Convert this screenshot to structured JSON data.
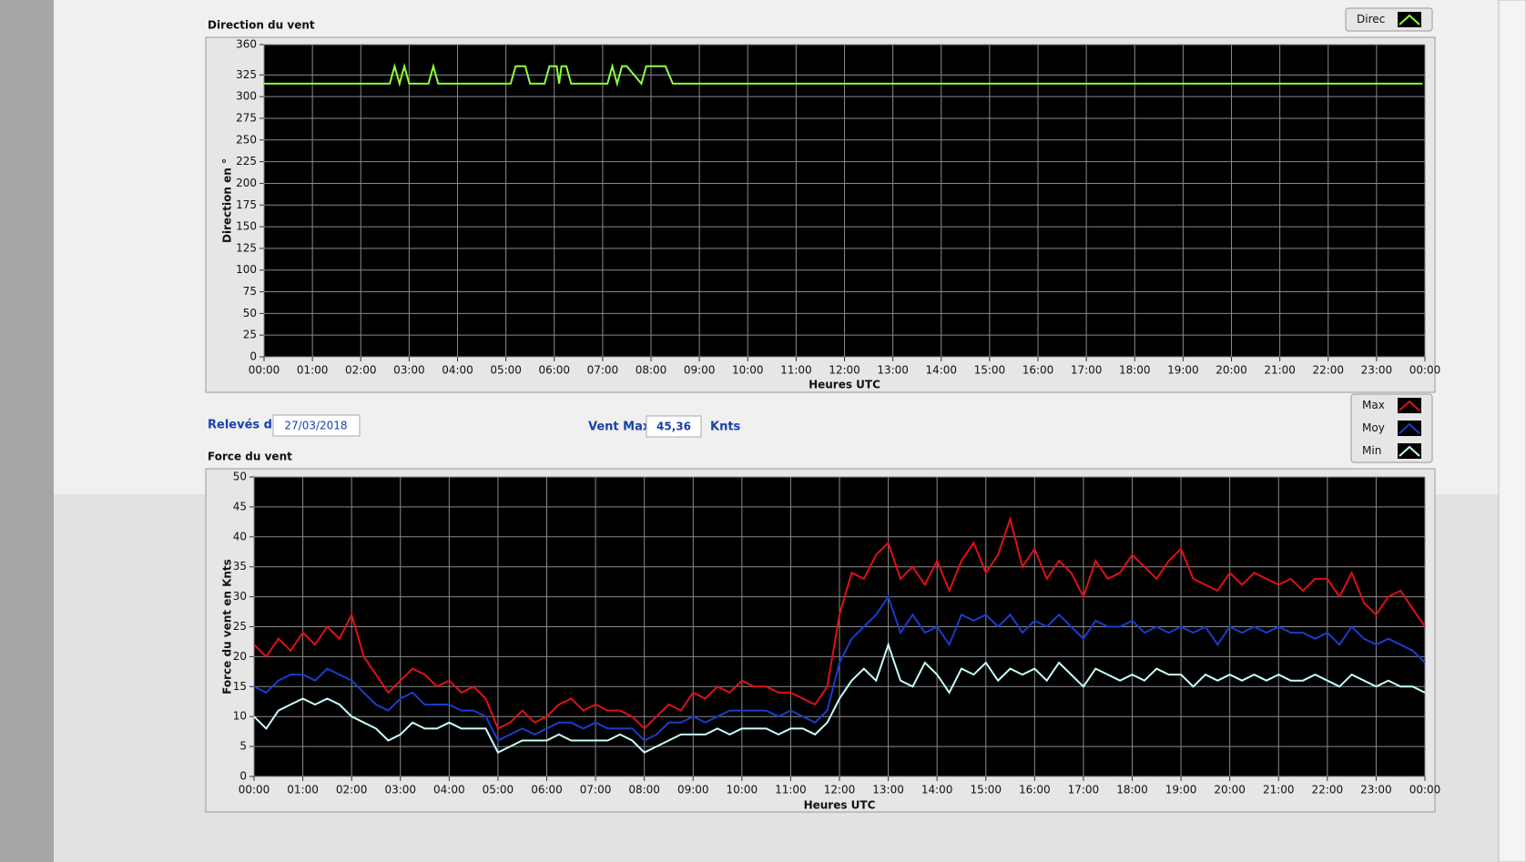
{
  "header": {
    "date_label": "Relevés du",
    "date": "27/03/2018",
    "vmax_label": "Vent Max",
    "vmax": "45,36",
    "vmax_unit": "Knts"
  },
  "chart_data": [
    {
      "type": "line",
      "title": "Direction du vent",
      "y_label": "Direction en °",
      "x_label": "Heures UTC",
      "x": [
        0,
        2.6,
        2.7,
        2.8,
        2.9,
        3.0,
        3.4,
        3.5,
        3.6,
        5.1,
        5.2,
        5.4,
        5.5,
        5.8,
        5.9,
        6.05,
        6.1,
        6.15,
        6.25,
        6.35,
        6.5,
        7.1,
        7.2,
        7.3,
        7.4,
        7.5,
        7.8,
        7.9,
        8.0,
        8.3,
        8.45,
        23.95
      ],
      "series": [
        {
          "name": "Direc",
          "color": "#8cff3c",
          "values": [
            315,
            315,
            335,
            315,
            335,
            315,
            315,
            335,
            315,
            315,
            335,
            335,
            315,
            315,
            335,
            335,
            315,
            335,
            335,
            315,
            315,
            315,
            335,
            315,
            335,
            335,
            315,
            335,
            335,
            335,
            315,
            315
          ]
        }
      ],
      "xlim": [
        0,
        24
      ],
      "ylim": [
        0,
        360
      ],
      "xticks": [
        {
          "value": 0,
          "label": "00:00"
        },
        {
          "value": 1,
          "label": "01:00"
        },
        {
          "value": 2,
          "label": "02:00"
        },
        {
          "value": 3,
          "label": "03:00"
        },
        {
          "value": 4,
          "label": "04:00"
        },
        {
          "value": 5,
          "label": "05:00"
        },
        {
          "value": 6,
          "label": "06:00"
        },
        {
          "value": 7,
          "label": "07:00"
        },
        {
          "value": 8,
          "label": "08:00"
        },
        {
          "value": 9,
          "label": "09:00"
        },
        {
          "value": 10,
          "label": "10:00"
        },
        {
          "value": 11,
          "label": "11:00"
        },
        {
          "value": 12,
          "label": "12:00"
        },
        {
          "value": 13,
          "label": "13:00"
        },
        {
          "value": 14,
          "label": "14:00"
        },
        {
          "value": 15,
          "label": "15:00"
        },
        {
          "value": 16,
          "label": "16:00"
        },
        {
          "value": 17,
          "label": "17:00"
        },
        {
          "value": 18,
          "label": "18:00"
        },
        {
          "value": 19,
          "label": "19:00"
        },
        {
          "value": 20,
          "label": "20:00"
        },
        {
          "value": 21,
          "label": "21:00"
        },
        {
          "value": 22,
          "label": "22:00"
        },
        {
          "value": 23,
          "label": "23:00"
        },
        {
          "value": 24,
          "label": "00:00"
        }
      ],
      "yticks": [
        0,
        25,
        50,
        75,
        100,
        125,
        150,
        175,
        200,
        225,
        250,
        275,
        300,
        325,
        360
      ],
      "grid": true
    },
    {
      "type": "line",
      "title": "Force du vent",
      "y_label": "Force du vent en Knts",
      "x_label": "Heures UTC",
      "x": [
        0,
        0.25,
        0.5,
        0.75,
        1,
        1.25,
        1.5,
        1.75,
        2,
        2.25,
        2.5,
        2.75,
        3,
        3.25,
        3.5,
        3.75,
        4,
        4.25,
        4.5,
        4.75,
        5,
        5.25,
        5.5,
        5.75,
        6,
        6.25,
        6.5,
        6.75,
        7,
        7.25,
        7.5,
        7.75,
        8,
        8.25,
        8.5,
        8.75,
        9,
        9.25,
        9.5,
        9.75,
        10,
        10.25,
        10.5,
        10.75,
        11,
        11.25,
        11.5,
        11.75,
        12,
        12.25,
        12.5,
        12.75,
        13,
        13.25,
        13.5,
        13.75,
        14,
        14.25,
        14.5,
        14.75,
        15,
        15.25,
        15.5,
        15.75,
        16,
        16.25,
        16.5,
        16.75,
        17,
        17.25,
        17.5,
        17.75,
        18,
        18.25,
        18.5,
        18.75,
        19,
        19.25,
        19.5,
        19.75,
        20,
        20.25,
        20.5,
        20.75,
        21,
        21.25,
        21.5,
        21.75,
        22,
        22.25,
        22.5,
        22.75,
        23,
        23.25,
        23.5,
        23.75,
        24
      ],
      "series": [
        {
          "name": "Max",
          "color": "#e01018",
          "values": [
            22,
            20,
            23,
            21,
            24,
            22,
            25,
            23,
            27,
            20,
            17,
            14,
            16,
            18,
            17,
            15,
            16,
            14,
            15,
            13,
            8,
            9,
            11,
            9,
            10,
            12,
            13,
            11,
            12,
            11,
            11,
            10,
            8,
            10,
            12,
            11,
            14,
            13,
            15,
            14,
            16,
            15,
            15,
            14,
            14,
            13,
            12,
            15,
            27,
            34,
            33,
            37,
            39,
            33,
            35,
            32,
            36,
            31,
            36,
            39,
            34,
            37,
            43,
            35,
            38,
            33,
            36,
            34,
            30,
            36,
            33,
            34,
            37,
            35,
            33,
            36,
            38,
            33,
            32,
            31,
            34,
            32,
            34,
            33,
            32,
            33,
            31,
            33,
            33,
            30,
            34,
            29,
            27,
            30,
            31,
            28,
            25
          ]
        },
        {
          "name": "Moy",
          "color": "#1a3ccc",
          "values": [
            15,
            14,
            16,
            17,
            17,
            16,
            18,
            17,
            16,
            14,
            12,
            11,
            13,
            14,
            12,
            12,
            12,
            11,
            11,
            10,
            6,
            7,
            8,
            7,
            8,
            9,
            9,
            8,
            9,
            8,
            8,
            8,
            6,
            7,
            9,
            9,
            10,
            9,
            10,
            11,
            11,
            11,
            11,
            10,
            11,
            10,
            9,
            11,
            19,
            23,
            25,
            27,
            30,
            24,
            27,
            24,
            25,
            22,
            27,
            26,
            27,
            25,
            27,
            24,
            26,
            25,
            27,
            25,
            23,
            26,
            25,
            25,
            26,
            24,
            25,
            24,
            25,
            24,
            25,
            22,
            25,
            24,
            25,
            24,
            25,
            24,
            24,
            23,
            24,
            22,
            25,
            23,
            22,
            23,
            22,
            21,
            19
          ]
        },
        {
          "name": "Min",
          "color": "#c8ffff",
          "values": [
            10,
            8,
            11,
            12,
            13,
            12,
            13,
            12,
            10,
            9,
            8,
            6,
            7,
            9,
            8,
            8,
            9,
            8,
            8,
            8,
            4,
            5,
            6,
            6,
            6,
            7,
            6,
            6,
            6,
            6,
            7,
            6,
            4,
            5,
            6,
            7,
            7,
            7,
            8,
            7,
            8,
            8,
            8,
            7,
            8,
            8,
            7,
            9,
            13,
            16,
            18,
            16,
            22,
            16,
            15,
            19,
            17,
            14,
            18,
            17,
            19,
            16,
            18,
            17,
            18,
            16,
            19,
            17,
            15,
            18,
            17,
            16,
            17,
            16,
            18,
            17,
            17,
            15,
            17,
            16,
            17,
            16,
            17,
            16,
            17,
            16,
            16,
            17,
            16,
            15,
            17,
            16,
            15,
            16,
            15,
            15,
            14
          ]
        }
      ],
      "xlim": [
        0,
        24
      ],
      "ylim": [
        0,
        50
      ],
      "xticks": [
        {
          "value": 0,
          "label": "00:00"
        },
        {
          "value": 1,
          "label": "01:00"
        },
        {
          "value": 2,
          "label": "02:00"
        },
        {
          "value": 3,
          "label": "03:00"
        },
        {
          "value": 4,
          "label": "04:00"
        },
        {
          "value": 5,
          "label": "05:00"
        },
        {
          "value": 6,
          "label": "06:00"
        },
        {
          "value": 7,
          "label": "07:00"
        },
        {
          "value": 8,
          "label": "08:00"
        },
        {
          "value": 9,
          "label": "09:00"
        },
        {
          "value": 10,
          "label": "10:00"
        },
        {
          "value": 11,
          "label": "11:00"
        },
        {
          "value": 12,
          "label": "12:00"
        },
        {
          "value": 13,
          "label": "13:00"
        },
        {
          "value": 14,
          "label": "14:00"
        },
        {
          "value": 15,
          "label": "15:00"
        },
        {
          "value": 16,
          "label": "16:00"
        },
        {
          "value": 17,
          "label": "17:00"
        },
        {
          "value": 18,
          "label": "18:00"
        },
        {
          "value": 19,
          "label": "19:00"
        },
        {
          "value": 20,
          "label": "20:00"
        },
        {
          "value": 21,
          "label": "21:00"
        },
        {
          "value": 22,
          "label": "22:00"
        },
        {
          "value": 23,
          "label": "23:00"
        },
        {
          "value": 24,
          "label": "00:00"
        }
      ],
      "yticks": [
        0,
        5,
        10,
        15,
        20,
        25,
        30,
        35,
        40,
        45,
        50
      ],
      "grid": true
    }
  ]
}
